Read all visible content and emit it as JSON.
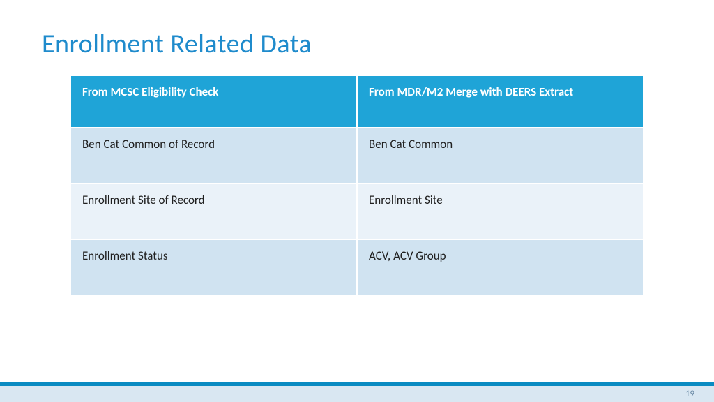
{
  "title": {
    "text": "Enrollment Related Data",
    "color": "#1f8bcc",
    "fontsize": 38
  },
  "table": {
    "header_bg": "#1fa4d7",
    "header_fg": "#ffffff",
    "row_bg_odd": "#d0e3f1",
    "row_bg_even": "#eaf2f9",
    "columns": [
      "From MCSC Eligibility Check",
      "From MDR/M2 Merge with DEERS Extract"
    ],
    "rows": [
      [
        "Ben Cat Common of Record",
        "Ben Cat Common"
      ],
      [
        "Enrollment Site of Record",
        "Enrollment Site"
      ],
      [
        "Enrollment Status",
        "ACV, ACV Group"
      ]
    ]
  },
  "footer": {
    "bar_color": "#0a8bc2",
    "bottom_bg": "#d9e7f2",
    "page_number": "19",
    "page_number_color": "#6a8aa6"
  }
}
